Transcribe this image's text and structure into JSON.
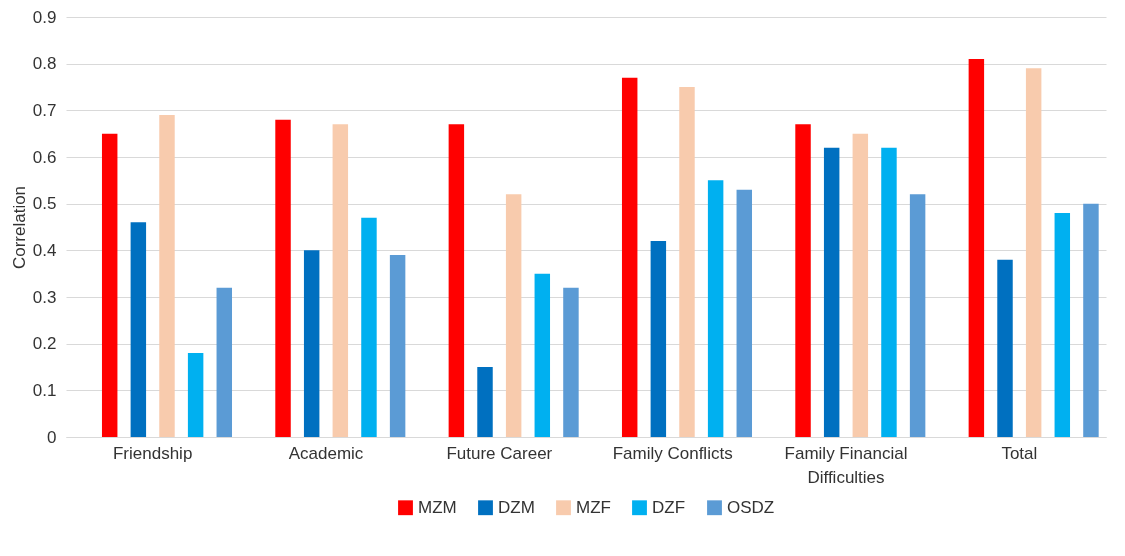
{
  "chart_data": {
    "type": "bar",
    "ylabel": "Correlation",
    "categories": [
      "Friendship",
      "Academic",
      "Future Career",
      "Family Conflicts",
      "Family Financial Difficulties",
      "Total"
    ],
    "series": [
      {
        "name": "MZM",
        "color": "#ff0000",
        "values": [
          0.65,
          0.68,
          0.67,
          0.77,
          0.67,
          0.81
        ]
      },
      {
        "name": "DZM",
        "color": "#0070c0",
        "values": [
          0.46,
          0.4,
          0.15,
          0.42,
          0.62,
          0.38
        ]
      },
      {
        "name": "MZF",
        "color": "#f8cbad",
        "values": [
          0.69,
          0.67,
          0.52,
          0.75,
          0.65,
          0.79
        ]
      },
      {
        "name": "DZF",
        "color": "#00b0f0",
        "values": [
          0.18,
          0.47,
          0.35,
          0.55,
          0.62,
          0.48
        ]
      },
      {
        "name": "OSDZ",
        "color": "#5b9bd5",
        "values": [
          0.32,
          0.39,
          0.32,
          0.53,
          0.52,
          0.5
        ]
      }
    ],
    "ylim": [
      0,
      0.9
    ],
    "yticks": [
      0,
      0.1,
      0.2,
      0.3,
      0.4,
      0.5,
      0.6,
      0.7,
      0.8,
      0.9
    ],
    "grid": "y",
    "legend": "bottom"
  }
}
